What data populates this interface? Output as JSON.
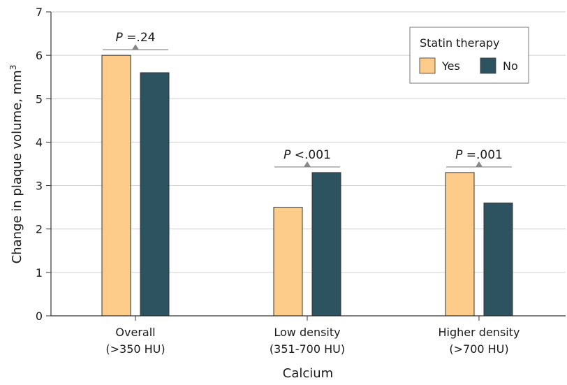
{
  "chart_data": {
    "type": "bar",
    "title": "",
    "xlabel": "Calcium",
    "ylabel": "Change in plaque volume, mm",
    "ylabel_superscript": "3",
    "ylim": [
      0,
      7
    ],
    "yticks": [
      "0",
      "1",
      "2",
      "3",
      "4",
      "5",
      "6",
      "7"
    ],
    "categories": [
      {
        "line1": "Overall",
        "line2": "(>350 HU)"
      },
      {
        "line1": "Low density",
        "line2": "(351-700 HU)"
      },
      {
        "line1": "Higher density",
        "line2": "(>700 HU)"
      }
    ],
    "series": [
      {
        "name": "Yes",
        "values": [
          6.0,
          2.5,
          3.3
        ],
        "color": "#FDCB8A"
      },
      {
        "name": "No",
        "values": [
          5.6,
          3.3,
          2.6
        ],
        "color": "#2E5360"
      }
    ],
    "legend": {
      "title": "Statin therapy",
      "placement": "top-right"
    },
    "p_values": [
      {
        "italic": "P",
        "text": " =.24"
      },
      {
        "italic": "P",
        "text": " <.001"
      },
      {
        "italic": "P",
        "text": " =.001"
      }
    ],
    "grid": true
  }
}
